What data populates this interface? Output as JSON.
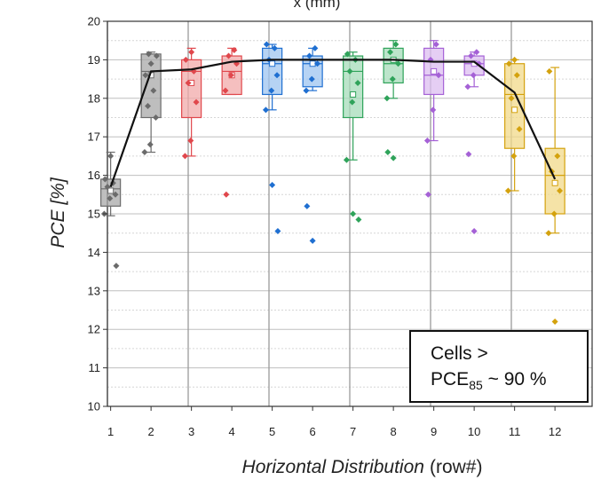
{
  "chart_data": {
    "type": "box",
    "top_label": "x (mm)",
    "xlabel": "Horizontal Distribution",
    "xlabel_suffix": "(row#)",
    "ylabel": "PCE [%]",
    "ylim": [
      10,
      20
    ],
    "xlim": [
      0.5,
      12.5
    ],
    "yticks": [
      10,
      11,
      12,
      13,
      14,
      15,
      16,
      17,
      18,
      19,
      20
    ],
    "xticks": [
      1,
      2,
      3,
      4,
      5,
      6,
      7,
      8,
      9,
      10,
      11,
      12
    ],
    "grid": true,
    "annotation": {
      "line1": "Cells  >",
      "line2_prefix": "PCE",
      "line2_sub": "85",
      "line2_suffix": " ~ 90 %"
    },
    "colors": [
      "#6b6b6b",
      "#6b6b6b",
      "#e0474c",
      "#e0474c",
      "#1f6fd1",
      "#1f6fd1",
      "#2fa35a",
      "#2fa35a",
      "#a561d6",
      "#a561d6",
      "#d4a20e",
      "#d4a20e"
    ],
    "fills": [
      "#a8a8a8",
      "#a8a8a8",
      "#f2aaa9",
      "#f2aaa9",
      "#9ec4f0",
      "#9ec4f0",
      "#a6dcb9",
      "#a6dcb9",
      "#dcbdf0",
      "#dcbdf0",
      "#f1d98a",
      "#f1d98a"
    ],
    "boxes": [
      {
        "row": 1,
        "whisker_low": 14.95,
        "q1": 15.2,
        "median": 15.65,
        "mean": 15.6,
        "q3": 15.9,
        "whisker_high": 16.6,
        "points": [
          15.0,
          15.4,
          15.5,
          15.7,
          15.8,
          15.9,
          16.5,
          13.65
        ]
      },
      {
        "row": 2,
        "whisker_low": 16.6,
        "q1": 17.5,
        "median": 18.7,
        "mean": 18.6,
        "q3": 19.15,
        "whisker_high": 19.2,
        "points": [
          16.6,
          16.8,
          17.5,
          17.8,
          18.2,
          18.6,
          18.9,
          19.1,
          19.15
        ]
      },
      {
        "row": 3,
        "whisker_low": 16.5,
        "q1": 17.5,
        "median": 18.7,
        "mean": 18.4,
        "q3": 19.0,
        "whisker_high": 19.3,
        "points": [
          16.5,
          16.9,
          17.9,
          18.4,
          18.7,
          19.0,
          19.2
        ]
      },
      {
        "row": 4,
        "whisker_low": 18.1,
        "q1": 18.1,
        "median": 18.7,
        "mean": 18.6,
        "q3": 19.1,
        "whisker_high": 19.3,
        "points": [
          18.2,
          18.6,
          18.9,
          19.1,
          19.25,
          15.5
        ]
      },
      {
        "row": 5,
        "whisker_low": 17.7,
        "q1": 18.1,
        "median": 18.9,
        "mean": 18.9,
        "q3": 19.3,
        "whisker_high": 19.4,
        "points": [
          17.7,
          18.2,
          18.6,
          19.0,
          19.3,
          19.4,
          15.75,
          14.55
        ]
      },
      {
        "row": 6,
        "whisker_low": 18.2,
        "q1": 18.3,
        "median": 18.9,
        "mean": 18.9,
        "q3": 19.1,
        "whisker_high": 19.3,
        "points": [
          18.2,
          18.5,
          18.9,
          19.1,
          19.3,
          15.2,
          14.3
        ]
      },
      {
        "row": 7,
        "whisker_low": 16.4,
        "q1": 17.5,
        "median": 18.7,
        "mean": 18.1,
        "q3": 19.1,
        "whisker_high": 19.2,
        "points": [
          16.4,
          17.9,
          18.4,
          18.7,
          19.0,
          19.15,
          15.0,
          14.85
        ]
      },
      {
        "row": 8,
        "whisker_low": 18.0,
        "q1": 18.4,
        "median": 18.9,
        "mean": 19.0,
        "q3": 19.3,
        "whisker_high": 19.5,
        "points": [
          18.0,
          18.5,
          18.9,
          19.2,
          19.4,
          16.6,
          16.45
        ]
      },
      {
        "row": 9,
        "whisker_low": 16.9,
        "q1": 18.1,
        "median": 18.6,
        "mean": 18.7,
        "q3": 19.3,
        "whisker_high": 19.5,
        "points": [
          16.9,
          17.7,
          18.6,
          19.0,
          19.4,
          15.5
        ]
      },
      {
        "row": 10,
        "whisker_low": 18.3,
        "q1": 18.6,
        "median": 18.9,
        "mean": 18.9,
        "q3": 19.1,
        "whisker_high": 19.2,
        "points": [
          18.3,
          18.6,
          18.9,
          19.1,
          19.2,
          16.55,
          14.55
        ]
      },
      {
        "row": 11,
        "whisker_low": 15.6,
        "q1": 16.7,
        "median": 18.1,
        "mean": 17.7,
        "q3": 18.9,
        "whisker_high": 19.0,
        "points": [
          15.6,
          16.5,
          17.2,
          18.0,
          18.6,
          18.9,
          19.0
        ]
      },
      {
        "row": 12,
        "whisker_low": 14.5,
        "q1": 15.0,
        "median": 16.0,
        "mean": 15.8,
        "q3": 16.7,
        "whisker_high": 18.8,
        "points": [
          14.5,
          15.0,
          15.6,
          16.1,
          16.5,
          18.7,
          12.2
        ]
      }
    ],
    "mean_line": {
      "x": [
        1,
        2,
        3,
        4,
        5,
        6,
        7,
        8,
        9,
        10,
        11,
        12
      ],
      "y": [
        15.7,
        18.7,
        18.75,
        18.95,
        19.0,
        19.0,
        19.0,
        19.0,
        18.95,
        18.95,
        18.15,
        15.9
      ]
    }
  }
}
